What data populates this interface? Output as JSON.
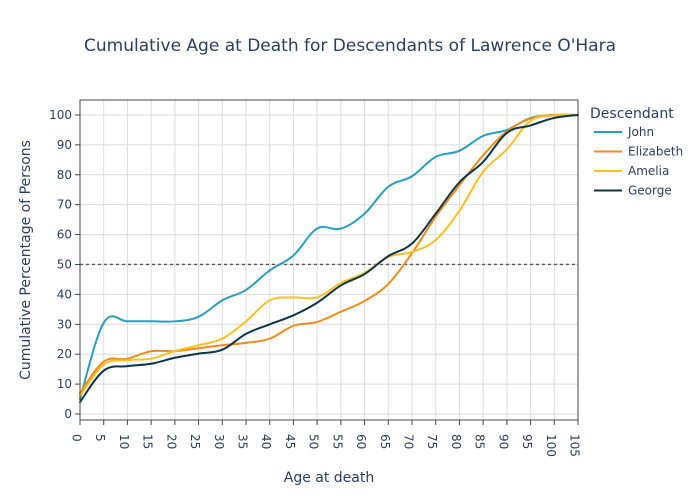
{
  "chart_data": {
    "type": "line",
    "title": "Cumulative Age at Death for Descendants of Lawrence O'Hara",
    "xlabel": "Age at death",
    "ylabel": "Cumulative Percentage of Persons",
    "xlim": [
      0,
      105
    ],
    "ylim": [
      -2,
      105
    ],
    "x_ticks": [
      0,
      5,
      10,
      15,
      20,
      25,
      30,
      35,
      40,
      45,
      50,
      55,
      60,
      65,
      70,
      75,
      80,
      85,
      90,
      95,
      100,
      105
    ],
    "y_ticks": [
      0,
      10,
      20,
      30,
      40,
      50,
      60,
      70,
      80,
      90,
      100
    ],
    "grid": true,
    "reference_line": {
      "y": 50,
      "style": "dotted"
    },
    "legend": {
      "title": "Descendant",
      "placement": "right"
    },
    "series": [
      {
        "name": "John",
        "color": "#2a9dbd",
        "x": [
          0,
          5,
          10,
          15,
          20,
          25,
          30,
          35,
          40,
          45,
          50,
          55,
          60,
          65,
          70,
          75,
          80,
          85,
          90,
          95,
          100,
          105
        ],
        "y": [
          5,
          30.5,
          31,
          31,
          31,
          32.5,
          38,
          41.5,
          48,
          53,
          62,
          62,
          67,
          76,
          79.5,
          86,
          88,
          93,
          95,
          99,
          100,
          100
        ]
      },
      {
        "name": "Elizabeth",
        "color": "#f08c1c",
        "x": [
          0,
          5,
          10,
          15,
          20,
          25,
          30,
          35,
          40,
          45,
          50,
          55,
          60,
          65,
          70,
          75,
          80,
          85,
          90,
          95,
          100,
          105
        ],
        "y": [
          7,
          17.5,
          18.5,
          21,
          21,
          22,
          23,
          23.8,
          25.2,
          29.5,
          30.8,
          34.2,
          37.8,
          43.5,
          53.8,
          66,
          76.5,
          86.5,
          94.5,
          98.8,
          100,
          100
        ]
      },
      {
        "name": "Amelia",
        "color": "#fbbf24",
        "x": [
          0,
          5,
          10,
          15,
          20,
          25,
          30,
          35,
          40,
          45,
          50,
          55,
          60,
          65,
          70,
          75,
          80,
          85,
          90,
          95,
          100,
          105
        ],
        "y": [
          6,
          16.5,
          18,
          18.5,
          21,
          23,
          25.2,
          31,
          38,
          39,
          39,
          43.8,
          47.2,
          52.5,
          54.2,
          58.2,
          68,
          81,
          88.5,
          98,
          99.8,
          100
        ]
      },
      {
        "name": "George",
        "color": "#0d3547",
        "x": [
          0,
          5,
          10,
          15,
          20,
          25,
          30,
          35,
          40,
          45,
          50,
          55,
          60,
          65,
          70,
          75,
          80,
          85,
          90,
          95,
          100,
          105
        ],
        "y": [
          4,
          14.5,
          16,
          16.8,
          18.8,
          20.2,
          21.5,
          26.8,
          30,
          33,
          37.2,
          43,
          46.8,
          52.8,
          57,
          67,
          77.5,
          84.3,
          94,
          96.5,
          99,
          100
        ]
      }
    ]
  }
}
